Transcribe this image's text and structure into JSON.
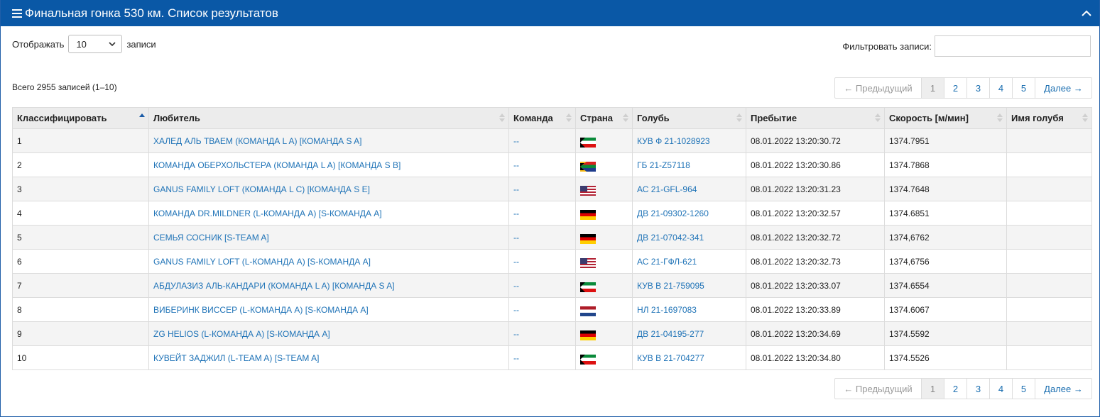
{
  "header": {
    "title": "Финальная гонка 530 км. Список результатов",
    "icon": "list-icon",
    "collapse_icon": "chevron-up-icon"
  },
  "controls": {
    "show_label": "Отображать",
    "length_value": "10",
    "records_label": "записи",
    "filter_label": "Фильтровать записи:",
    "filter_value": ""
  },
  "info": "Всего 2955 записей (1–10)",
  "pagination": {
    "prev": "← Предыдущий",
    "pages": [
      "1",
      "2",
      "3",
      "4",
      "5"
    ],
    "active_page": "1",
    "next": "Далее →"
  },
  "table": {
    "columns": [
      "Классифицировать",
      "Любитель",
      "Команда",
      "Страна",
      "Голубь",
      "Пребытие",
      "Скорость [м/мин]",
      "Имя голубя"
    ],
    "sorted_column": "Классифицировать",
    "rows": [
      {
        "rank": "1",
        "fancier": "ХАЛЕД АЛЬ ТВАЕМ (КОМАНДА L A) [КОМАНДА S A]",
        "team": "--",
        "country": "kw",
        "pigeon": "КУВ Ф 21-1028923",
        "arrival": "08.01.2022 13:20:30.72",
        "speed": "1374.7951",
        "name": ""
      },
      {
        "rank": "2",
        "fancier": "КОМАНДА ОБЕРХОЛЬСТЕРА (КОМАНДА L A) [КОМАНДА S B]",
        "team": "--",
        "country": "za",
        "pigeon": "ГБ 21-Z57118",
        "arrival": "08.01.2022 13:20:30.86",
        "speed": "1374.7868",
        "name": ""
      },
      {
        "rank": "3",
        "fancier": "GANUS FAMILY LOFT (КОМАНДА L C) [КОМАНДА S E]",
        "team": "--",
        "country": "us",
        "pigeon": "АС 21-GFL-964",
        "arrival": "08.01.2022 13:20:31.23",
        "speed": "1374.7648",
        "name": ""
      },
      {
        "rank": "4",
        "fancier": "КОМАНДА DR.MILDNER (L-КОМАНДА A) [S-КОМАНДА A]",
        "team": "--",
        "country": "de",
        "pigeon": "ДВ 21-09302-1260",
        "arrival": "08.01.2022 13:20:32.57",
        "speed": "1374.6851",
        "name": ""
      },
      {
        "rank": "5",
        "fancier": "СЕМЬЯ СОСНИК [S-TEAM A]",
        "team": "--",
        "country": "de",
        "pigeon": "ДВ 21-07042-341",
        "arrival": "08.01.2022 13:20:32.72",
        "speed": "1374,6762",
        "name": ""
      },
      {
        "rank": "6",
        "fancier": "GANUS FAMILY LOFT (L-КОМАНДА A) [S-КОМАНДА A]",
        "team": "--",
        "country": "us",
        "pigeon": "АС 21-ГФЛ-621",
        "arrival": "08.01.2022 13:20:32.73",
        "speed": "1374,6756",
        "name": ""
      },
      {
        "rank": "7",
        "fancier": "АБДУЛАЗИЗ АЛЬ-КАНДАРИ (КОМАНДА L A) [КОМАНДА S A]",
        "team": "--",
        "country": "kw",
        "pigeon": "КУВ В 21-759095",
        "arrival": "08.01.2022 13:20:33.07",
        "speed": "1374.6554",
        "name": ""
      },
      {
        "rank": "8",
        "fancier": "ВИБЕРИНК ВИССЕР (L-КОМАНДА A) [S-КОМАНДА A]",
        "team": "--",
        "country": "nl",
        "pigeon": "НЛ 21-1697083",
        "arrival": "08.01.2022 13:20:33.89",
        "speed": "1374.6067",
        "name": ""
      },
      {
        "rank": "9",
        "fancier": "ZG HELIOS (L-КОМАНДА A) [S-КОМАНДА A]",
        "team": "--",
        "country": "de",
        "pigeon": "ДВ 21-04195-277",
        "arrival": "08.01.2022 13:20:34.69",
        "speed": "1374.5592",
        "name": ""
      },
      {
        "rank": "10",
        "fancier": "КУВЕЙТ ЗАДЖИЛ (L-TEAM A) [S-TEAM A]",
        "team": "--",
        "country": "kw",
        "pigeon": "КУВ В 21-704277",
        "arrival": "08.01.2022 13:20:34.80",
        "speed": "1374.5526",
        "name": ""
      }
    ]
  }
}
